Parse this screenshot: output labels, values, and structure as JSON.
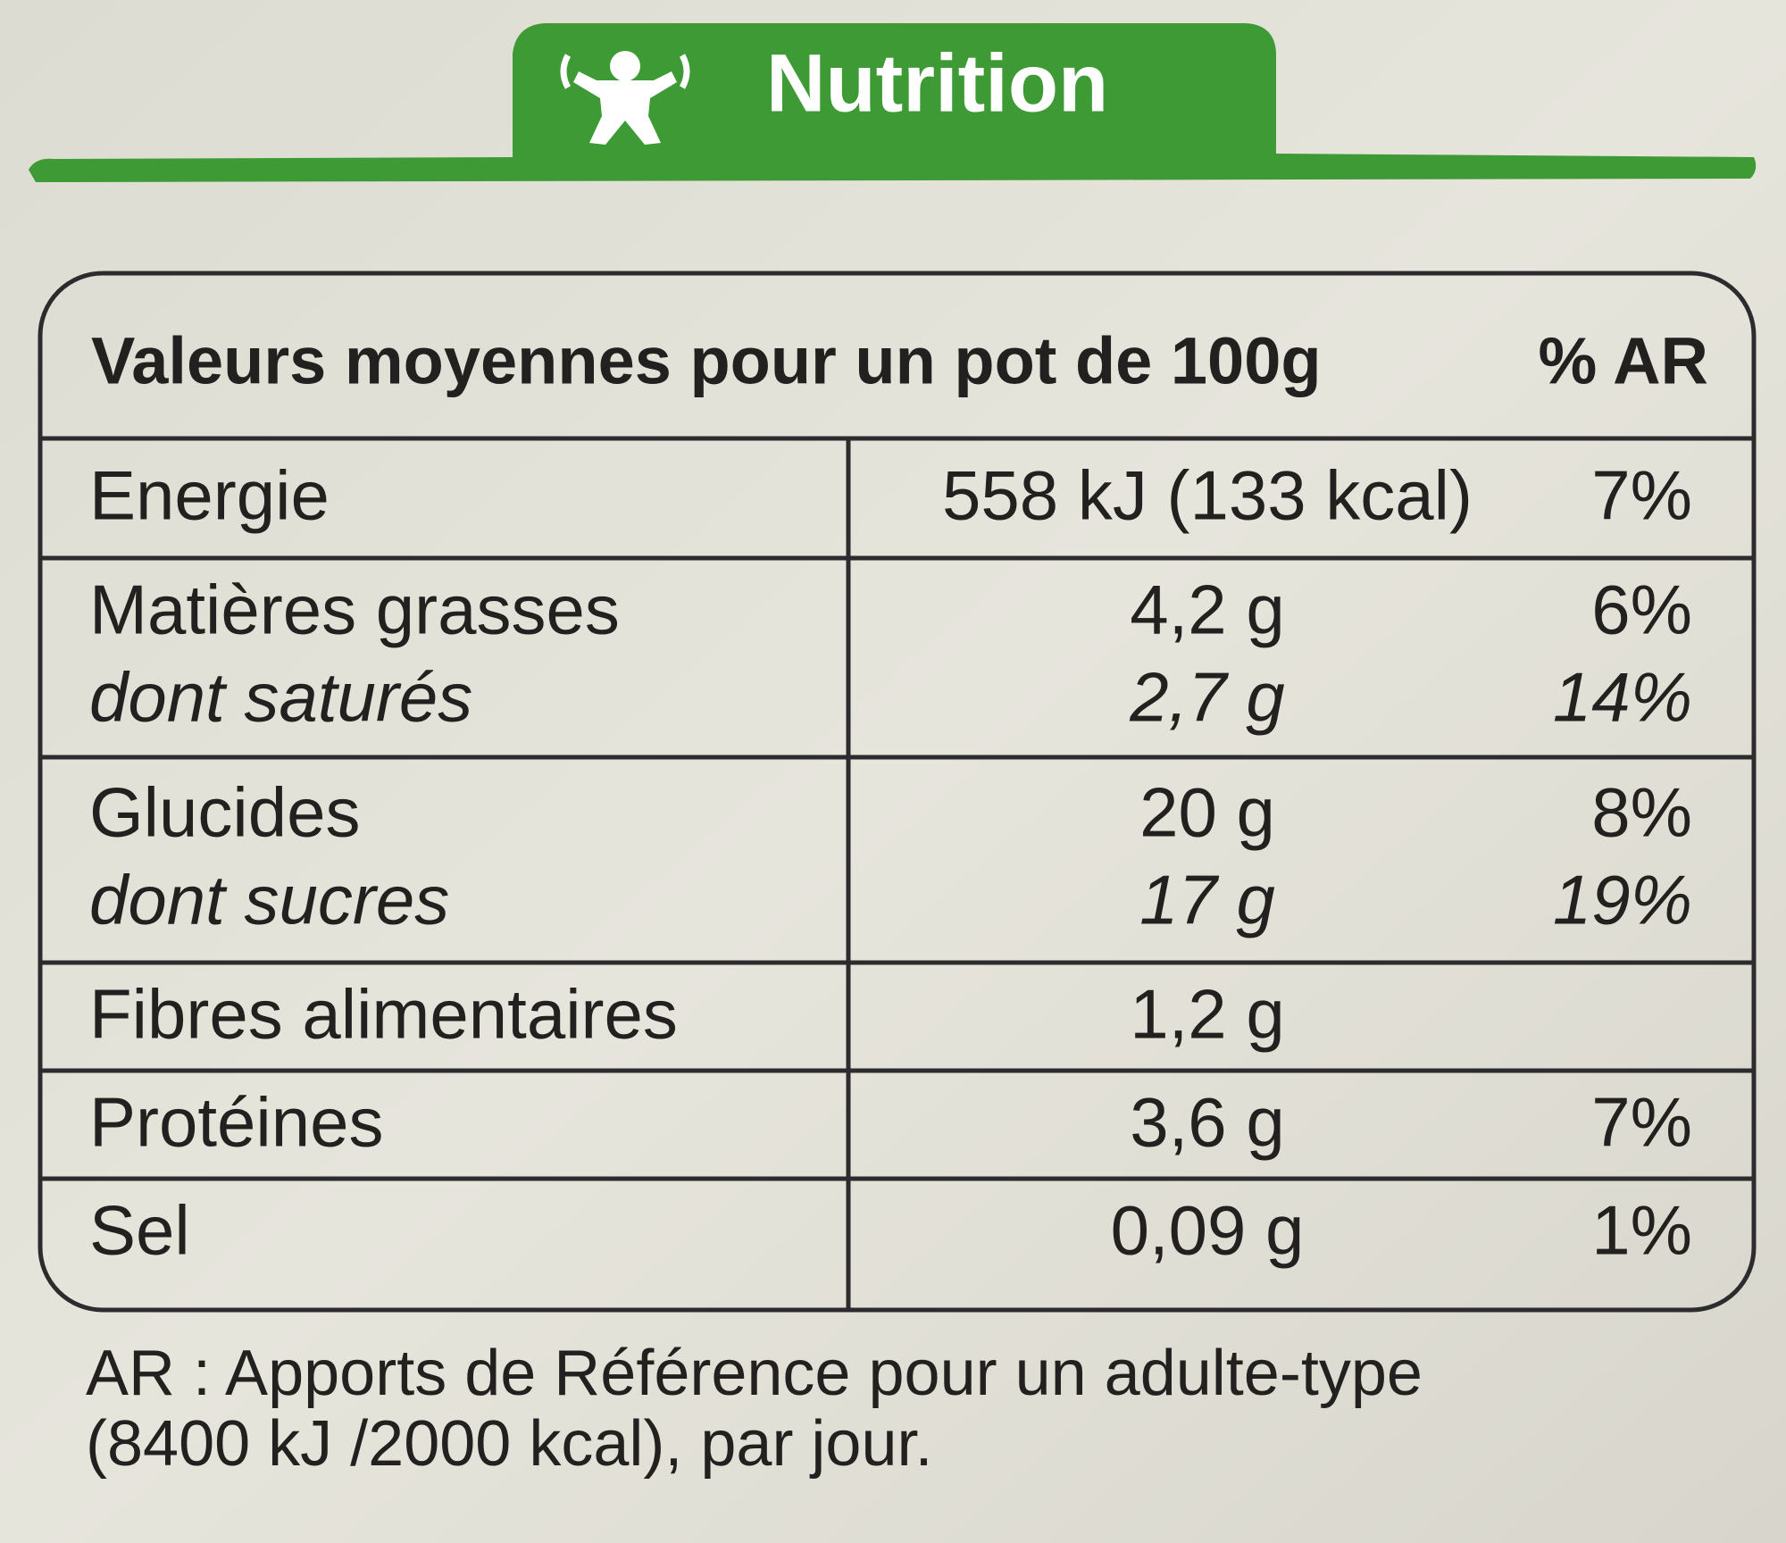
{
  "header": {
    "title": "Nutrition"
  },
  "table": {
    "header": [
      "Valeurs moyennes pour un pot de 100g",
      "% AR"
    ],
    "sections": [
      [
        [
          "Energie",
          "558 kJ (133 kcal)",
          "7%"
        ]
      ],
      [
        [
          "Matières grasses",
          "4,2 g",
          "6%"
        ],
        [
          "dont saturés",
          "2,7 g",
          "14%"
        ]
      ],
      [
        [
          "Glucides",
          "20 g",
          "8%"
        ],
        [
          "dont sucres",
          "17 g",
          "19%"
        ]
      ],
      [
        [
          "Fibres alimentaires",
          "1,2 g"
        ]
      ],
      [
        [
          "Protéines",
          "3,6 g",
          "7%"
        ]
      ],
      [
        [
          "Sel",
          "0,09 g",
          "1%"
        ]
      ]
    ]
  },
  "footer": [
    "AR : Apports de Référence pour un adulte-type",
    "(8400 kJ /2000 kcal), par jour."
  ]
}
